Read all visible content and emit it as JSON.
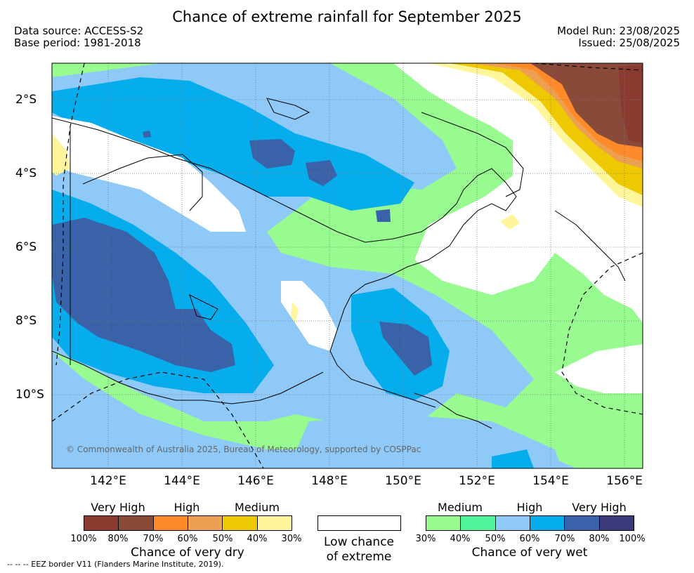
{
  "header": {
    "title": "Chance of extreme rainfall for September 2025",
    "data_source": "Data source: ACCESS-S2",
    "base_period": "Base period: 1981-2018",
    "model_run": "Model Run: 23/08/2025",
    "issued": "Issued: 25/08/2025"
  },
  "map": {
    "lon_labels": [
      "142°E",
      "144°E",
      "146°E",
      "148°E",
      "150°E",
      "152°E",
      "154°E",
      "156°E"
    ],
    "lat_labels": [
      "2°S",
      "4°S",
      "6°S",
      "8°S",
      "10°S"
    ],
    "credit": "© Commonwealth of Australia 2025, Bureau of Meteorology, supported by COSPPac",
    "gridlines": "dotted"
  },
  "legend": {
    "dry": {
      "categories": [
        "Very High",
        "High",
        "Medium"
      ],
      "ticks": [
        "100%",
        "80%",
        "70%",
        "60%",
        "50%",
        "40%",
        "30%"
      ],
      "colors": [
        "#8b3a2f",
        "#8a4a3a",
        "#ff8a2a",
        "#eda050",
        "#eec800",
        "#fff59a"
      ],
      "title": "Chance of very dry"
    },
    "low": {
      "line1": "Low chance",
      "line2": "of extreme",
      "color": "#ffffff"
    },
    "wet": {
      "categories": [
        "Medium",
        "High",
        "Very High"
      ],
      "ticks": [
        "30%",
        "40%",
        "50%",
        "60%",
        "70%",
        "80%",
        "100%"
      ],
      "colors": [
        "#98fb90",
        "#52f59a",
        "#8ec9f8",
        "#05adec",
        "#3a62a8",
        "#3d3a7c"
      ],
      "title": "Chance of very wet"
    }
  },
  "footer": {
    "eez_note": "--  --  -- EEZ border V11 (Flanders Marine Institute, 2019)."
  }
}
